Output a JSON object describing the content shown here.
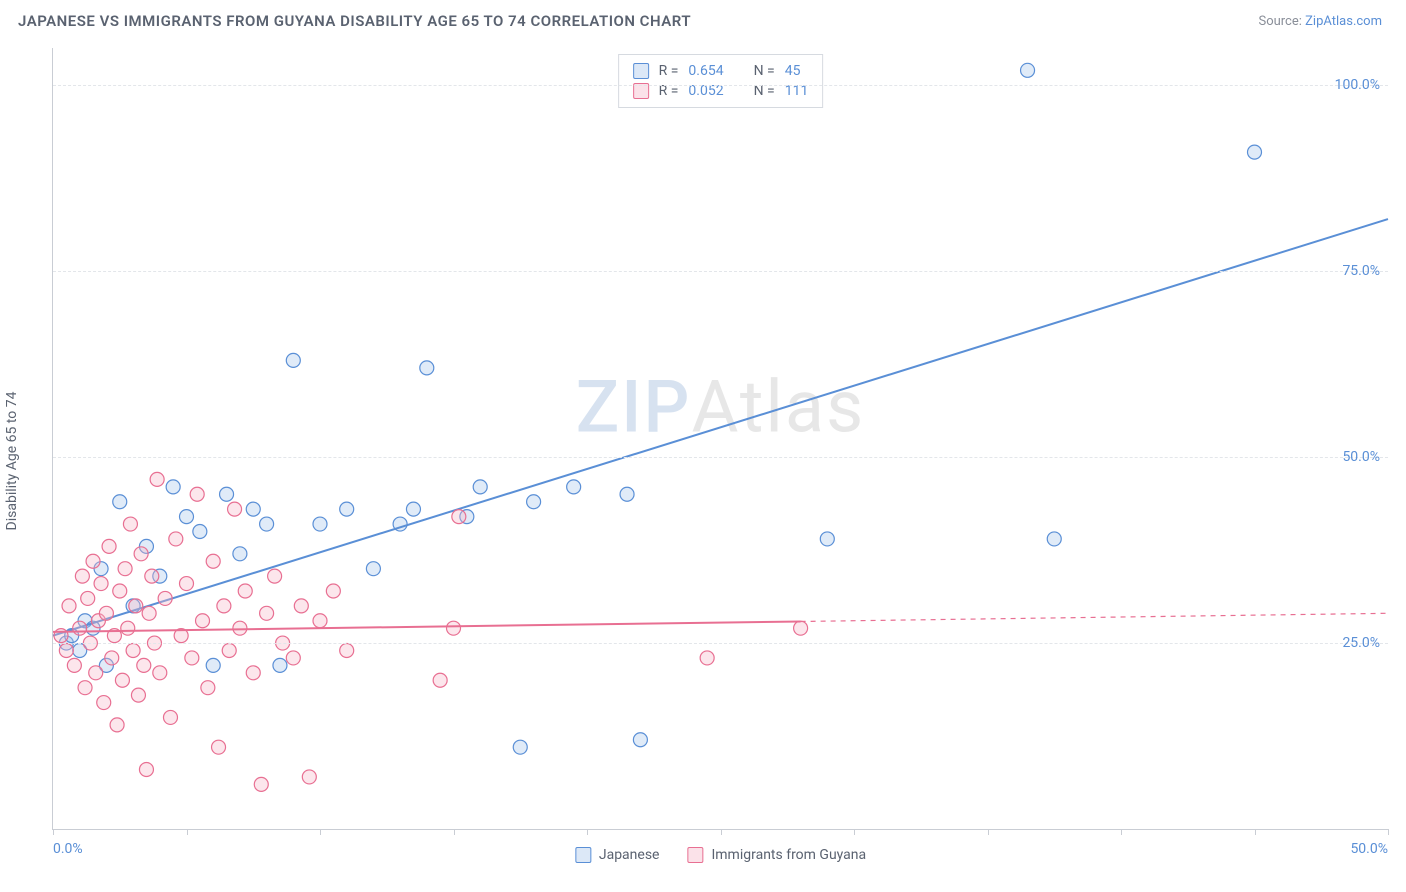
{
  "header": {
    "title": "JAPANESE VS IMMIGRANTS FROM GUYANA DISABILITY AGE 65 TO 74 CORRELATION CHART",
    "source_prefix": "Source: ",
    "source_link": "ZipAtlas.com"
  },
  "watermark": {
    "zip": "ZIP",
    "atlas": "Atlas"
  },
  "chart": {
    "type": "scatter",
    "ylabel": "Disability Age 65 to 74",
    "xlim": [
      0,
      50
    ],
    "ylim": [
      0,
      105
    ],
    "xtick_positions": [
      0,
      5,
      10,
      15,
      20,
      25,
      30,
      35,
      40,
      45,
      50
    ],
    "xtick_labels": {
      "first": "0.0%",
      "last": "50.0%"
    },
    "ytick_positions": [
      25,
      50,
      75,
      100
    ],
    "ytick_labels": [
      "25.0%",
      "50.0%",
      "75.0%",
      "100.0%"
    ],
    "grid_color": "#e3e6ea",
    "axis_color": "#c9cdd4",
    "background_color": "#ffffff",
    "marker_radius": 7,
    "marker_stroke_width": 1.2,
    "marker_fill_opacity": 0.35,
    "line_width": 2
  },
  "series": [
    {
      "key": "japanese",
      "label": "Japanese",
      "color_stroke": "#5a8fd6",
      "color_fill": "#a7c6ec",
      "R": "0.654",
      "N": "45",
      "trend": {
        "x1": 0,
        "y1": 26,
        "x2": 50,
        "y2": 82,
        "solid_until_x": 50
      },
      "points": [
        [
          0.5,
          25
        ],
        [
          0.7,
          26
        ],
        [
          1.0,
          24
        ],
        [
          1.2,
          28
        ],
        [
          1.5,
          27
        ],
        [
          1.8,
          35
        ],
        [
          2.0,
          22
        ],
        [
          2.5,
          44
        ],
        [
          3.0,
          30
        ],
        [
          3.5,
          38
        ],
        [
          4.0,
          34
        ],
        [
          4.5,
          46
        ],
        [
          5.0,
          42
        ],
        [
          5.5,
          40
        ],
        [
          6.0,
          22
        ],
        [
          6.5,
          45
        ],
        [
          7.0,
          37
        ],
        [
          7.5,
          43
        ],
        [
          8.0,
          41
        ],
        [
          8.5,
          22
        ],
        [
          9.0,
          63
        ],
        [
          10.0,
          41
        ],
        [
          11.0,
          43
        ],
        [
          12.0,
          35
        ],
        [
          13.0,
          41
        ],
        [
          13.5,
          43
        ],
        [
          14.0,
          62
        ],
        [
          15.5,
          42
        ],
        [
          16.0,
          46
        ],
        [
          17.5,
          11
        ],
        [
          18.0,
          44
        ],
        [
          19.5,
          46
        ],
        [
          21.5,
          45
        ],
        [
          22.0,
          12
        ],
        [
          29.0,
          39
        ],
        [
          36.5,
          102
        ],
        [
          37.5,
          39
        ],
        [
          45.0,
          91
        ]
      ]
    },
    {
      "key": "guyana",
      "label": "Immigrants from Guyana",
      "color_stroke": "#e86f92",
      "color_fill": "#f5b7c8",
      "R": "0.052",
      "N": "111",
      "trend": {
        "x1": 0,
        "y1": 26.5,
        "x2": 50,
        "y2": 29,
        "solid_until_x": 28
      },
      "points": [
        [
          0.3,
          26
        ],
        [
          0.5,
          24
        ],
        [
          0.6,
          30
        ],
        [
          0.8,
          22
        ],
        [
          1.0,
          27
        ],
        [
          1.1,
          34
        ],
        [
          1.2,
          19
        ],
        [
          1.3,
          31
        ],
        [
          1.4,
          25
        ],
        [
          1.5,
          36
        ],
        [
          1.6,
          21
        ],
        [
          1.7,
          28
        ],
        [
          1.8,
          33
        ],
        [
          1.9,
          17
        ],
        [
          2.0,
          29
        ],
        [
          2.1,
          38
        ],
        [
          2.2,
          23
        ],
        [
          2.3,
          26
        ],
        [
          2.4,
          14
        ],
        [
          2.5,
          32
        ],
        [
          2.6,
          20
        ],
        [
          2.7,
          35
        ],
        [
          2.8,
          27
        ],
        [
          2.9,
          41
        ],
        [
          3.0,
          24
        ],
        [
          3.1,
          30
        ],
        [
          3.2,
          18
        ],
        [
          3.3,
          37
        ],
        [
          3.4,
          22
        ],
        [
          3.5,
          8
        ],
        [
          3.6,
          29
        ],
        [
          3.7,
          34
        ],
        [
          3.8,
          25
        ],
        [
          3.9,
          47
        ],
        [
          4.0,
          21
        ],
        [
          4.2,
          31
        ],
        [
          4.4,
          15
        ],
        [
          4.6,
          39
        ],
        [
          4.8,
          26
        ],
        [
          5.0,
          33
        ],
        [
          5.2,
          23
        ],
        [
          5.4,
          45
        ],
        [
          5.6,
          28
        ],
        [
          5.8,
          19
        ],
        [
          6.0,
          36
        ],
        [
          6.2,
          11
        ],
        [
          6.4,
          30
        ],
        [
          6.6,
          24
        ],
        [
          6.8,
          43
        ],
        [
          7.0,
          27
        ],
        [
          7.2,
          32
        ],
        [
          7.5,
          21
        ],
        [
          7.8,
          6
        ],
        [
          8.0,
          29
        ],
        [
          8.3,
          34
        ],
        [
          8.6,
          25
        ],
        [
          9.0,
          23
        ],
        [
          9.3,
          30
        ],
        [
          9.6,
          7
        ],
        [
          10.0,
          28
        ],
        [
          10.5,
          32
        ],
        [
          11.0,
          24
        ],
        [
          14.5,
          20
        ],
        [
          15.0,
          27
        ],
        [
          15.2,
          42
        ],
        [
          24.5,
          23
        ],
        [
          28.0,
          27
        ]
      ]
    }
  ],
  "legend_stats_labels": {
    "R": "R =",
    "N": "N ="
  }
}
